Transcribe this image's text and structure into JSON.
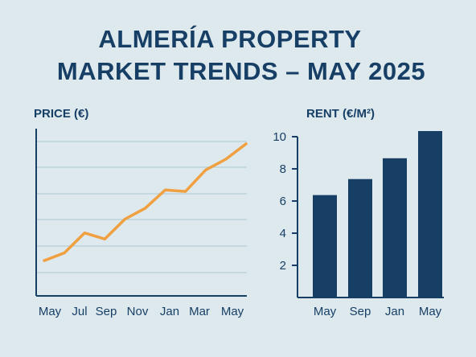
{
  "title": {
    "line1": "ALMERÍA PROPERTY",
    "line2": "MARKET TRENDS – MAY 2025"
  },
  "colors": {
    "navy": "#173f66",
    "orange": "#f0a040",
    "grid": "#b4cdd7",
    "background": "#dde9ed"
  },
  "chart_data": [
    {
      "type": "line",
      "title": "PRICE (€)",
      "x_tick_labels": [
        "May",
        "Jul",
        "Sep",
        "Nov",
        "Jan",
        "Mar",
        "May"
      ],
      "y_tick_labels": [],
      "ylim": [
        0,
        100
      ],
      "grid": true,
      "series": [
        {
          "values": [
            12,
            17,
            30,
            26,
            39,
            46,
            58,
            57,
            71,
            78,
            88
          ]
        }
      ]
    },
    {
      "type": "bar",
      "title": "RENT (€/M²)",
      "categories": [
        "May",
        "Sep",
        "Jan",
        "May"
      ],
      "values": [
        6.4,
        7.4,
        8.7,
        10.4
      ],
      "ylim": [
        0,
        10.4
      ],
      "y_ticks": [
        2,
        4,
        6,
        8,
        10
      ],
      "grid": false
    }
  ]
}
